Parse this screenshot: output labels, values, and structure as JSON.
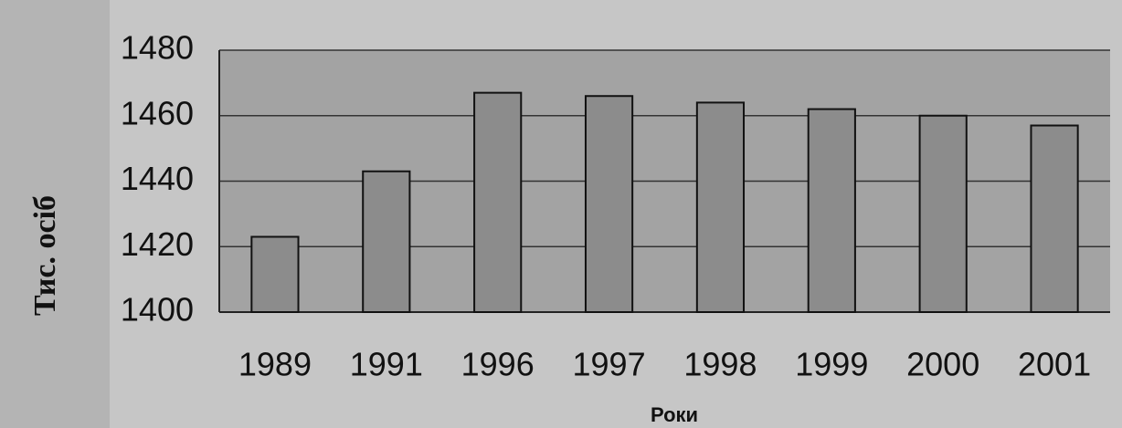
{
  "chart_data": {
    "type": "bar",
    "categories": [
      "1989",
      "1991",
      "1996",
      "1997",
      "1998",
      "1999",
      "2000",
      "2001"
    ],
    "values": [
      1423,
      1443,
      1467,
      1466,
      1464,
      1462,
      1460,
      1457
    ],
    "color": "#8c8c8c",
    "ylim": [
      1400,
      1480
    ],
    "yticks": [
      1400,
      1420,
      1440,
      1460,
      1480
    ],
    "grid": true,
    "xlabel": "Роки",
    "ylabel": "Тис. осіб"
  }
}
